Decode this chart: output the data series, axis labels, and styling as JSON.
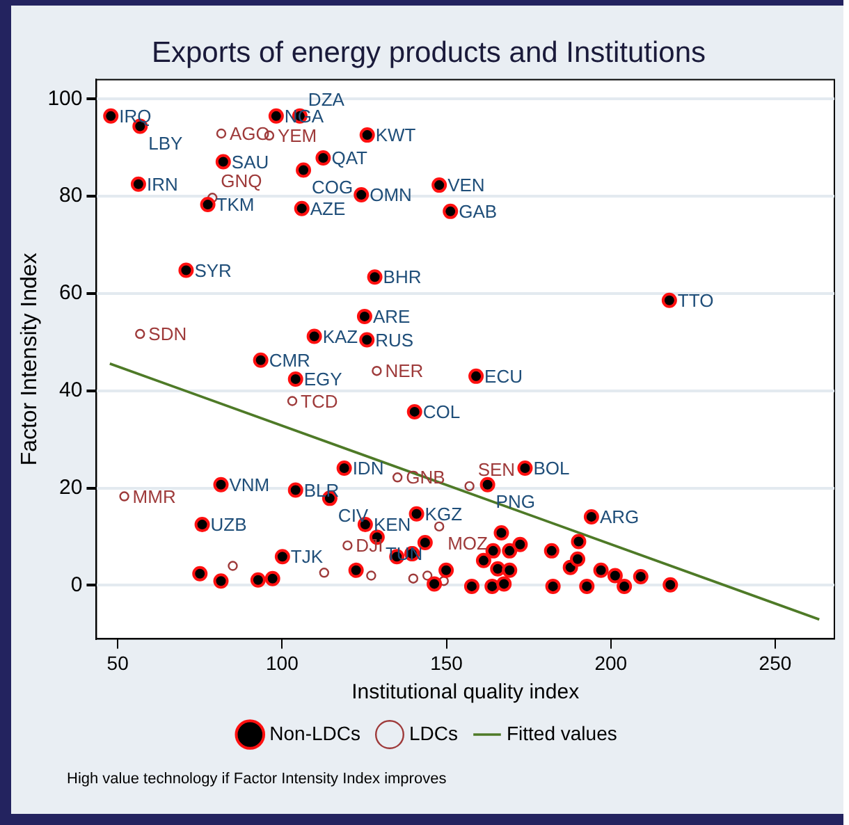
{
  "chart_data": {
    "type": "scatter",
    "title": "Exports of energy products and Institutions",
    "xlabel": "Institutional quality index",
    "ylabel": "Factor Intensity Index",
    "xlim": [
      43.5,
      268
    ],
    "ylim": [
      -11,
      104
    ],
    "xticks": [
      50,
      100,
      150,
      200,
      250
    ],
    "yticks": [
      0,
      20,
      40,
      60,
      80,
      100
    ],
    "grid": "y",
    "legend": "bottom",
    "marker": "circle",
    "annotations": [
      "High value technology if Factor Intensity Index improves"
    ],
    "series": [
      {
        "name": "Non-LDCs",
        "color": "#000000",
        "x": [
          47.9,
          56.8,
          56.3,
          82.1,
          77.4,
          98.2,
          105.4,
          125.9,
          112.5,
          106.5,
          106.0,
          124.1,
          147.8,
          151.2,
          70.8,
          128.2,
          125.1,
          109.8,
          125.8,
          217.8,
          93.5,
          104.1,
          140.3,
          159.0,
          118.9,
          173.9,
          81.4,
          104.1,
          114.5,
          75.7,
          125.3,
          140.9,
          194.1,
          100.1,
          128.9,
          162.5,
          75.0,
          81.4,
          139.6,
          143.5,
          166.7,
          164.2,
          169.2,
          172.4,
          161.3,
          165.6,
          169.2,
          163.9,
          167.5,
          157.7,
          149.9,
          146.3,
          182.4,
          187.7,
          189.9,
          190.2,
          192.7,
          197.0,
          201.3,
          204.1,
          209.1,
          218.1,
          182.0,
          134.9,
          139.5,
          122.5,
          92.7,
          97.1
        ],
        "values": [
          96.5,
          94.4,
          82.5,
          87.1,
          78.3,
          96.5,
          96.5,
          92.6,
          87.9,
          85.4,
          77.5,
          80.3,
          82.3,
          76.9,
          64.8,
          63.4,
          55.3,
          51.2,
          50.5,
          58.6,
          46.3,
          42.4,
          35.7,
          43.0,
          24.1,
          24.1,
          20.7,
          19.6,
          17.9,
          12.5,
          12.5,
          14.7,
          14.1,
          5.9,
          9.9,
          20.7,
          2.4,
          0.9,
          6.5,
          8.8,
          10.8,
          7.1,
          7.1,
          8.4,
          5.1,
          3.4,
          3.1,
          -0.2,
          0.3,
          -0.2,
          3.1,
          0.3,
          -0.2,
          3.7,
          5.4,
          9.0,
          -0.2,
          3.1,
          2.0,
          -0.2,
          1.8,
          0.1,
          7.1,
          5.9,
          6.5,
          3.1,
          1.1,
          1.4
        ],
        "value_labels": [
          "IRQ",
          "LBY",
          "IRN",
          "SAU",
          "TKM",
          "NGA",
          "DZA",
          "KWT",
          "QAT",
          "COG",
          "AZE",
          "OMN",
          "VEN",
          "GAB",
          "SYR",
          "BHR",
          "ARE",
          "KAZ",
          "RUS",
          "TTO",
          "CMR",
          "EGY",
          "COL",
          "ECU",
          "IDN",
          "BOL",
          "VNM",
          "BLR",
          "CIV",
          "UZB",
          "KEN",
          "KGZ",
          "ARG",
          "TJK",
          "TUN",
          "PNG",
          null,
          null,
          null,
          null,
          null,
          null,
          null,
          null,
          null,
          null,
          null,
          null,
          null,
          null,
          null,
          null,
          null,
          null,
          null,
          null,
          null,
          null,
          null,
          null,
          null,
          null,
          null,
          null,
          null,
          null,
          null,
          null
        ]
      },
      {
        "name": "LDCs",
        "color": "#9e3a3a",
        "x": [
          81.5,
          96.1,
          78.8,
          56.8,
          128.8,
          103.1,
          135.1,
          52.0,
          157.0,
          147.8,
          119.9,
          85.0,
          112.8,
          127.1,
          144.2,
          139.9,
          149.2
        ],
        "values": [
          92.9,
          92.5,
          79.7,
          51.7,
          44.1,
          37.9,
          22.2,
          18.3,
          20.4,
          12.1,
          8.2,
          4.0,
          2.6,
          2.0,
          2.0,
          1.4,
          0.9
        ],
        "value_labels": [
          "AGO",
          "YEM",
          "GNQ",
          "SDN",
          "NER",
          "TCD",
          "GNB",
          "MMR",
          "SEN",
          "MOZ",
          "DJI",
          null,
          null,
          null,
          null,
          null,
          null
        ]
      },
      {
        "name": "Fitted values",
        "type": "line",
        "marker": "none",
        "color": "#4e7a27",
        "x": [
          47.6,
          263.4
        ],
        "values": [
          45.6,
          -7.0
        ]
      }
    ]
  }
}
